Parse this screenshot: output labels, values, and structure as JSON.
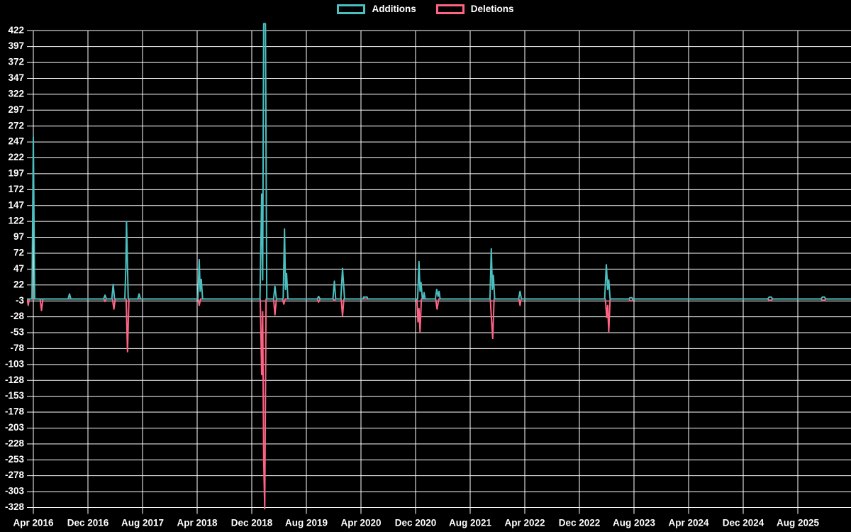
{
  "chart_data": {
    "type": "line",
    "title": "",
    "legend_position": "top",
    "background_color": "#000000",
    "text_color": "#ffffff",
    "grid": {
      "show": true,
      "color": "#ffffff"
    },
    "x_axis": {
      "tick_labels": [
        "Apr 2016",
        "Dec 2016",
        "Aug 2017",
        "Apr 2018",
        "Dec 2018",
        "Aug 2019",
        "Apr 2020",
        "Dec 2020",
        "Aug 2021",
        "Apr 2022",
        "Dec 2022",
        "Aug 2023",
        "Apr 2024",
        "Dec 2024",
        "Aug 2025"
      ],
      "tick_interval_months": 8,
      "x_unit": "months since Apr 2016",
      "x_range": [
        -0.9,
        119.7
      ]
    },
    "y_axis": {
      "tick_labels": [
        422,
        397,
        372,
        347,
        322,
        297,
        272,
        247,
        222,
        197,
        172,
        147,
        122,
        97,
        72,
        47,
        22,
        -3,
        -28,
        -53,
        -78,
        -103,
        -128,
        -153,
        -178,
        -203,
        -228,
        -253,
        -278,
        -303,
        -328
      ],
      "tick_step": 25,
      "range_shown": [
        -335,
        434
      ]
    },
    "series": [
      {
        "name": "Additions",
        "color": "#4bc0c0",
        "points": [
          [
            -0.9,
            0
          ],
          [
            -0.2,
            0
          ],
          [
            0,
            255
          ],
          [
            0.2,
            0
          ],
          [
            5.1,
            0
          ],
          [
            5.3,
            8
          ],
          [
            5.5,
            0
          ],
          [
            10.3,
            0
          ],
          [
            10.5,
            6
          ],
          [
            10.7,
            0
          ],
          [
            11.5,
            0
          ],
          [
            11.7,
            23
          ],
          [
            11.9,
            0
          ],
          [
            13.4,
            0
          ],
          [
            13.55,
            46
          ],
          [
            13.65,
            122
          ],
          [
            13.9,
            0
          ],
          [
            15.3,
            0
          ],
          [
            15.5,
            8
          ],
          [
            15.7,
            0
          ],
          [
            24.1,
            0
          ],
          [
            24.3,
            62
          ],
          [
            24.45,
            12
          ],
          [
            24.6,
            31
          ],
          [
            24.8,
            0
          ],
          [
            33.2,
            0
          ],
          [
            33.45,
            165
          ],
          [
            33.6,
            30
          ],
          [
            33.75,
            433
          ],
          [
            34.0,
            433
          ],
          [
            34.2,
            0
          ],
          [
            35.2,
            0
          ],
          [
            35.4,
            20
          ],
          [
            35.6,
            0
          ],
          [
            36.6,
            0
          ],
          [
            36.8,
            110
          ],
          [
            36.95,
            15
          ],
          [
            37.1,
            40
          ],
          [
            37.3,
            0
          ],
          [
            41.6,
            0
          ],
          [
            41.8,
            4
          ],
          [
            42.0,
            0
          ],
          [
            43.9,
            0
          ],
          [
            44.1,
            28
          ],
          [
            44.3,
            0
          ],
          [
            45.05,
            0
          ],
          [
            45.3,
            48
          ],
          [
            45.6,
            0
          ],
          [
            48.3,
            0
          ],
          [
            48.4,
            3
          ],
          [
            48.9,
            3
          ],
          [
            49.0,
            0
          ],
          [
            56.3,
            0
          ],
          [
            56.5,
            59
          ],
          [
            56.65,
            12
          ],
          [
            56.8,
            26
          ],
          [
            57.0,
            0
          ],
          [
            57.1,
            0
          ],
          [
            57.25,
            10
          ],
          [
            57.4,
            0
          ],
          [
            58.9,
            0
          ],
          [
            59.1,
            15
          ],
          [
            59.3,
            4
          ],
          [
            59.45,
            12
          ],
          [
            59.6,
            0
          ],
          [
            66.9,
            0
          ],
          [
            67.1,
            79
          ],
          [
            67.25,
            15
          ],
          [
            67.4,
            37
          ],
          [
            67.6,
            0
          ],
          [
            71.1,
            0
          ],
          [
            71.3,
            12
          ],
          [
            71.5,
            0
          ],
          [
            83.7,
            0
          ],
          [
            83.95,
            54
          ],
          [
            84.15,
            15
          ],
          [
            84.3,
            30
          ],
          [
            84.5,
            0
          ],
          [
            87.3,
            0
          ],
          [
            87.4,
            2
          ],
          [
            87.7,
            2
          ],
          [
            87.8,
            0
          ],
          [
            107.6,
            0
          ],
          [
            107.8,
            3
          ],
          [
            108.1,
            3
          ],
          [
            108.3,
            0
          ],
          [
            115.4,
            0
          ],
          [
            115.6,
            3
          ],
          [
            115.9,
            3
          ],
          [
            116.1,
            0
          ],
          [
            119.7,
            0
          ]
        ]
      },
      {
        "name": "Deletions",
        "color": "#ff6384",
        "points": [
          [
            -0.9,
            0
          ],
          [
            -0.75,
            -10
          ],
          [
            -0.6,
            0
          ],
          [
            1.0,
            0
          ],
          [
            1.2,
            -18
          ],
          [
            1.4,
            0
          ],
          [
            10.35,
            0
          ],
          [
            10.5,
            -4
          ],
          [
            10.65,
            0
          ],
          [
            11.6,
            0
          ],
          [
            11.8,
            -16
          ],
          [
            12.0,
            0
          ],
          [
            13.6,
            0
          ],
          [
            13.8,
            -83
          ],
          [
            14.0,
            0
          ],
          [
            24.15,
            0
          ],
          [
            24.3,
            -10
          ],
          [
            24.5,
            0
          ],
          [
            33.25,
            0
          ],
          [
            33.45,
            -119
          ],
          [
            33.6,
            -20
          ],
          [
            33.75,
            -252
          ],
          [
            33.9,
            -330
          ],
          [
            34.1,
            0
          ],
          [
            35.2,
            0
          ],
          [
            35.4,
            -25
          ],
          [
            35.6,
            0
          ],
          [
            36.5,
            0
          ],
          [
            36.7,
            -8
          ],
          [
            36.9,
            0
          ],
          [
            41.6,
            0
          ],
          [
            41.8,
            -5
          ],
          [
            42.0,
            0
          ],
          [
            43.95,
            0
          ],
          [
            44.1,
            -3
          ],
          [
            44.25,
            0
          ],
          [
            45.1,
            0
          ],
          [
            45.3,
            -27
          ],
          [
            45.5,
            0
          ],
          [
            56.2,
            0
          ],
          [
            56.35,
            -36
          ],
          [
            56.5,
            -15
          ],
          [
            56.65,
            -52
          ],
          [
            56.85,
            0
          ],
          [
            58.95,
            0
          ],
          [
            59.15,
            -16
          ],
          [
            59.4,
            0
          ],
          [
            66.95,
            0
          ],
          [
            67.15,
            -37
          ],
          [
            67.3,
            -62
          ],
          [
            67.5,
            0
          ],
          [
            71.15,
            0
          ],
          [
            71.3,
            -10
          ],
          [
            71.45,
            0
          ],
          [
            83.8,
            0
          ],
          [
            84.0,
            -29
          ],
          [
            84.15,
            -10
          ],
          [
            84.3,
            -52
          ],
          [
            84.5,
            0
          ],
          [
            87.3,
            0
          ],
          [
            87.4,
            -3
          ],
          [
            87.7,
            -3
          ],
          [
            87.8,
            0
          ],
          [
            107.6,
            0
          ],
          [
            107.8,
            -2
          ],
          [
            108.1,
            -2
          ],
          [
            108.3,
            0
          ],
          [
            115.4,
            0
          ],
          [
            115.6,
            -2
          ],
          [
            115.9,
            -2
          ],
          [
            116.1,
            0
          ],
          [
            119.7,
            0
          ]
        ]
      }
    ]
  }
}
